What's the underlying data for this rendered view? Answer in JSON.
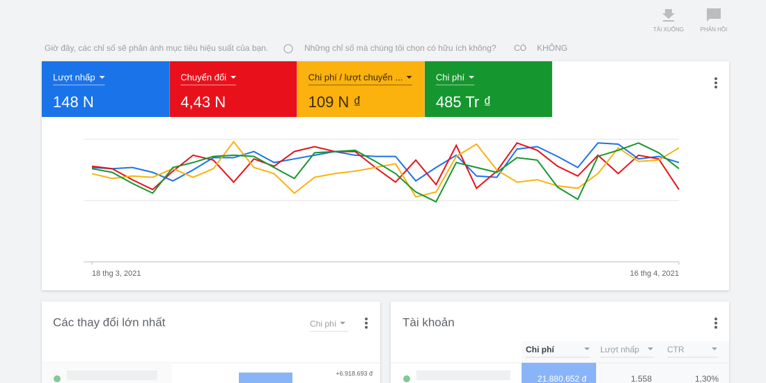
{
  "toolbar": {
    "download": "TẢI XUỐNG",
    "feedback": "PHẢN HỒI"
  },
  "notice": {
    "text": "Giờ đây, các chỉ số sẽ phản ánh mục tiêu hiệu suất của bạn.",
    "question": "Những chỉ số mà chúng tôi chọn có hữu ích không?",
    "yes": "CÓ",
    "no": "KHÔNG"
  },
  "chart_data": {
    "type": "line",
    "categories": [
      "18 thg 3, 2021",
      null,
      null,
      null,
      null,
      null,
      null,
      null,
      null,
      null,
      null,
      null,
      null,
      null,
      null,
      null,
      null,
      null,
      null,
      null,
      null,
      null,
      null,
      null,
      null,
      null,
      null,
      null,
      null,
      "16 thg 4, 2021"
    ],
    "ylim": [
      0,
      100
    ],
    "series": [
      {
        "name": "Lượt nhấp",
        "total": "148 N",
        "color": "#1a73e8",
        "values": [
          77,
          76,
          77,
          73,
          66,
          75,
          85,
          85,
          90,
          81,
          84,
          87,
          90,
          87,
          86,
          86,
          66,
          77,
          87,
          70,
          69,
          92,
          94,
          86,
          77,
          97,
          96,
          84,
          86,
          81
        ]
      },
      {
        "name": "Chuyển đổi",
        "total": "4,43 N",
        "color": "#e8111b",
        "values": [
          78,
          76,
          67,
          59,
          74,
          87,
          83,
          65,
          84,
          78,
          90,
          94,
          90,
          90,
          77,
          65,
          83,
          63,
          95,
          60,
          74,
          97,
          91,
          78,
          70,
          87,
          72,
          87,
          84,
          59
        ]
      },
      {
        "name": "Chi phí / lượt chuyển ...",
        "total": "109 N ₫",
        "color": "#fbb20f",
        "values": [
          72,
          68,
          70,
          69,
          76,
          69,
          76,
          98,
          77,
          72,
          56,
          69,
          72,
          74,
          77,
          80,
          53,
          57,
          86,
          96,
          75,
          65,
          67,
          62,
          60,
          72,
          93,
          82,
          83,
          93
        ]
      },
      {
        "name": "Chi phí",
        "total": "485 Tr ₫",
        "color": "#16962f",
        "values": [
          76,
          73,
          64,
          56,
          77,
          81,
          86,
          87,
          86,
          77,
          68,
          89,
          90,
          91,
          82,
          72,
          57,
          49,
          81,
          77,
          73,
          85,
          83,
          61,
          51,
          86,
          91,
          97,
          89,
          76
        ]
      }
    ]
  },
  "changes_card": {
    "title": "Các thay đổi lớn nhất",
    "dropdown": "Chi phí",
    "rows": [
      {
        "value": "+6.918.693 đ"
      }
    ]
  },
  "accounts_card": {
    "title": "Tài khoản",
    "columns": [
      "Chi phí",
      "Lượt nhấp",
      "CTR"
    ],
    "rows": [
      [
        "21.880.652 đ",
        "1.558",
        "1,30%"
      ]
    ]
  }
}
